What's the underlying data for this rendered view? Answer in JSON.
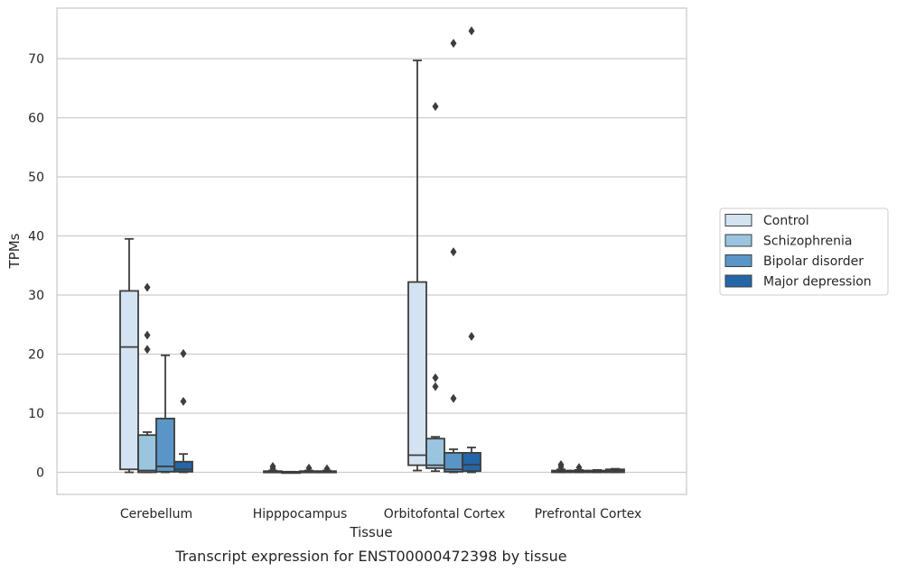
{
  "caption": "Transcript expression for ENST00000472398 by tissue",
  "chart_data": {
    "type": "box",
    "xlabel": "Tissue",
    "ylabel": "TPMs",
    "ylim": [
      -3.6,
      78.5
    ],
    "yticks": [
      0,
      10,
      20,
      30,
      40,
      50,
      60,
      70
    ],
    "grid": "horizontal",
    "legend_position": "right",
    "categories": [
      "Cerebellum",
      "Hipppocampus",
      "Orbitofontal Cortex",
      "Prefrontal Cortex"
    ],
    "series": [
      {
        "name": "Control",
        "color": "#d4e3f1",
        "boxes": [
          {
            "q1": 0.5,
            "median": 21.2,
            "q3": 30.7,
            "whisker_low": 0.0,
            "whisker_high": 39.5,
            "outliers": []
          },
          {
            "q1": 0.0,
            "median": 0.1,
            "q3": 0.2,
            "whisker_low": 0.0,
            "whisker_high": 0.3,
            "outliers": [
              0.6,
              1.0
            ]
          },
          {
            "q1": 1.2,
            "median": 2.9,
            "q3": 32.2,
            "whisker_low": 0.3,
            "whisker_high": 69.7,
            "outliers": []
          },
          {
            "q1": 0.0,
            "median": 0.1,
            "q3": 0.3,
            "whisker_low": 0.0,
            "whisker_high": 0.5,
            "outliers": [
              0.9,
              1.3
            ]
          }
        ]
      },
      {
        "name": "Schizophrenia",
        "color": "#9bc4de",
        "boxes": [
          {
            "q1": 0.0,
            "median": 0.3,
            "q3": 6.3,
            "whisker_low": 0.0,
            "whisker_high": 6.8,
            "outliers": [
              20.8,
              23.2,
              31.3
            ]
          },
          {
            "q1": 0.0,
            "median": 0.0,
            "q3": 0.1,
            "whisker_low": 0.0,
            "whisker_high": 0.1,
            "outliers": []
          },
          {
            "q1": 0.7,
            "median": 1.2,
            "q3": 5.7,
            "whisker_low": 0.2,
            "whisker_high": 6.0,
            "outliers": [
              14.5,
              16.0,
              61.9
            ]
          },
          {
            "q1": 0.0,
            "median": 0.1,
            "q3": 0.3,
            "whisker_low": 0.0,
            "whisker_high": 0.4,
            "outliers": [
              0.8
            ]
          }
        ]
      },
      {
        "name": "Bipolar disorder",
        "color": "#5996c7",
        "boxes": [
          {
            "q1": 0.1,
            "median": 1.0,
            "q3": 9.1,
            "whisker_low": 0.0,
            "whisker_high": 19.8,
            "outliers": []
          },
          {
            "q1": 0.0,
            "median": 0.1,
            "q3": 0.2,
            "whisker_low": 0.0,
            "whisker_high": 0.3,
            "outliers": [
              0.7
            ]
          },
          {
            "q1": 0.1,
            "median": 0.5,
            "q3": 3.3,
            "whisker_low": 0.0,
            "whisker_high": 3.9,
            "outliers": [
              12.5,
              37.3,
              72.6
            ]
          },
          {
            "q1": 0.0,
            "median": 0.1,
            "q3": 0.3,
            "whisker_low": 0.0,
            "whisker_high": 0.4,
            "outliers": []
          }
        ]
      },
      {
        "name": "Major depression",
        "color": "#2466a8",
        "boxes": [
          {
            "q1": 0.1,
            "median": 0.5,
            "q3": 1.8,
            "whisker_low": 0.0,
            "whisker_high": 3.1,
            "outliers": [
              12.0,
              20.1
            ]
          },
          {
            "q1": 0.0,
            "median": 0.1,
            "q3": 0.2,
            "whisker_low": 0.0,
            "whisker_high": 0.3,
            "outliers": [
              0.6
            ]
          },
          {
            "q1": 0.2,
            "median": 1.3,
            "q3": 3.3,
            "whisker_low": 0.0,
            "whisker_high": 4.2,
            "outliers": [
              23.0,
              74.7
            ]
          },
          {
            "q1": 0.0,
            "median": 0.3,
            "q3": 0.5,
            "whisker_low": 0.0,
            "whisker_high": 0.6,
            "outliers": []
          }
        ]
      }
    ]
  }
}
